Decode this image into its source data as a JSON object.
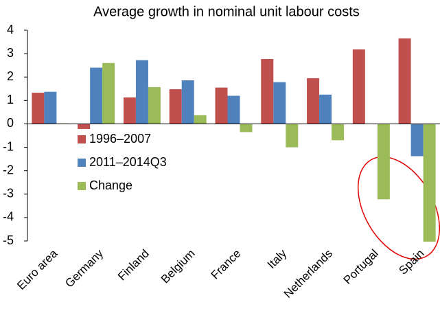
{
  "chart_data": {
    "type": "bar",
    "title": "Average growth in nominal unit labour costs",
    "categories": [
      "Euro area",
      "Germany",
      "Finland",
      "Belgium",
      "France",
      "Italy",
      "Netherlands",
      "Portugal",
      "Spain"
    ],
    "series": [
      {
        "name": "1996–2007",
        "color": "#c0504d",
        "values": [
          1.33,
          -0.22,
          1.13,
          1.48,
          1.55,
          2.77,
          1.95,
          3.18,
          3.65
        ]
      },
      {
        "name": "2011–2014Q3",
        "color": "#4f81bd",
        "values": [
          1.37,
          2.4,
          2.72,
          1.86,
          1.2,
          1.78,
          1.25,
          null,
          -1.38
        ]
      },
      {
        "name": "Change",
        "color": "#9bbb59",
        "values": [
          0.02,
          2.6,
          1.57,
          0.37,
          -0.35,
          -1.0,
          -0.7,
          -3.22,
          -5.03
        ]
      }
    ],
    "ylim": [
      -5,
      4
    ],
    "yticks": [
      -5,
      -4,
      -3,
      -2,
      -1,
      0,
      1,
      2,
      3,
      4
    ],
    "legend": "left"
  }
}
